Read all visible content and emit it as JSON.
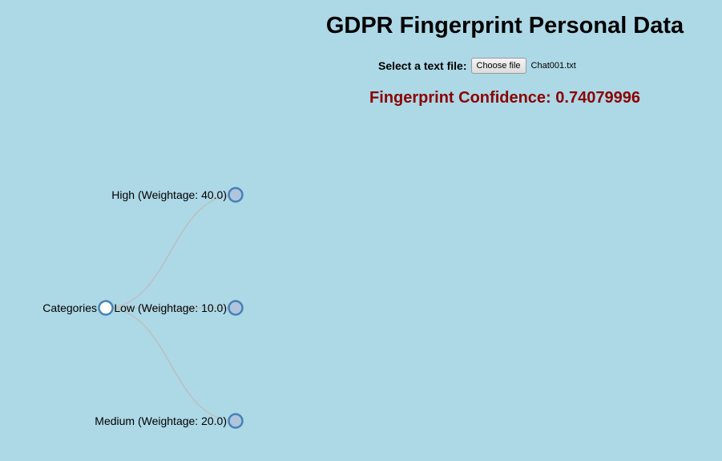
{
  "header": {
    "title": "GDPR Fingerprint Personal Data"
  },
  "file_select": {
    "label": "Select a text file:",
    "button_label": "Choose file",
    "file_name": "Chat001.txt"
  },
  "confidence": {
    "label": "Fingerprint Confidence:",
    "value": "0.74079996",
    "color": "#8b0000"
  },
  "tree": {
    "root": {
      "label": "Categories",
      "collapsed": false
    },
    "children": [
      {
        "label": "High (Weightage: 40.0)",
        "collapsed": true
      },
      {
        "label": "Low (Weightage: 10.0)",
        "collapsed": true
      },
      {
        "label": "Medium (Weightage: 20.0)",
        "collapsed": true
      }
    ],
    "colors": {
      "link": "#bdbdbd",
      "node_stroke": "#4682b4",
      "collapsed_fill": "#b0c4de",
      "expanded_fill": "#ffffff"
    }
  }
}
